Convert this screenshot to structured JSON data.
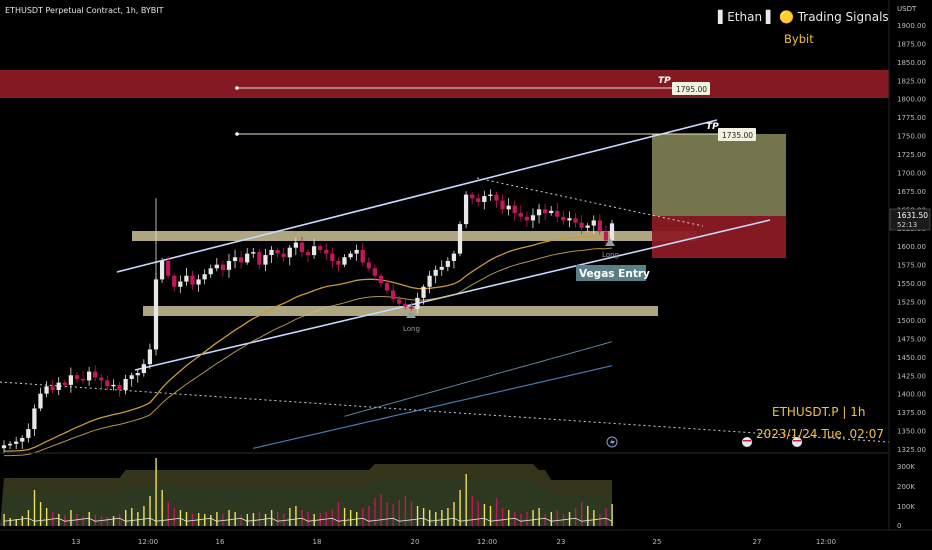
{
  "header": {
    "symbol_title": "ETHUSDT Perpetual Contract, 1h, BYBIT",
    "brand_line": "▌Ethan ▌ 🟡 Trading Signals",
    "exchange": "Bybit",
    "currency": "USDT"
  },
  "watermark": {
    "ticker": "ETHUSDT.P | 1h",
    "datetime": "2023/1/24 Tue. 02:07"
  },
  "price_axis": {
    "ticks": [
      "1900.00",
      "1875.00",
      "1850.00",
      "1825.00",
      "1800.00",
      "1775.00",
      "1750.00",
      "1725.00",
      "1700.00",
      "1675.00",
      "1650.00",
      "1625.00",
      "1600.00",
      "1575.00",
      "1550.00",
      "1525.00",
      "1500.00",
      "1475.00",
      "1450.00",
      "1425.00",
      "1400.00",
      "1375.00",
      "1350.00",
      "1325.00"
    ],
    "current_price": "1631.50",
    "countdown": "52:13"
  },
  "volume_axis": {
    "ticks": [
      "300K",
      "200K",
      "100K",
      "0"
    ]
  },
  "time_axis": {
    "ticks": [
      "13",
      "12:00",
      "16",
      "18",
      "20",
      "12:00",
      "23",
      "25",
      "27",
      "12:00"
    ]
  },
  "annotations": {
    "tp1_tag": "TP",
    "tp1_price": "1795.00",
    "tp2_tag": "TP",
    "tp2_price": "1735.00",
    "entry_label": "Vegas Entry",
    "long_label_1": "Long",
    "long_label_2": "Long"
  },
  "colors": {
    "background": "#000000",
    "candle_up": "#e8e8e8",
    "candle_down": "#c2185b",
    "resistance_zone": "#8b1a24",
    "support_zone": "#d8d0a0",
    "target_box": "#8a8a5a",
    "stop_box": "#8b1a24",
    "channel_line": "#c8d8ff",
    "ema_gold": "#c89a3a",
    "ema_blue": "#4a7ab0",
    "accent_text": "#f0c040"
  },
  "chart_data": {
    "type": "candlestick",
    "symbol": "ETHUSDT",
    "timeframe": "1h",
    "ylim": [
      1325,
      1910
    ],
    "close_series": [
      1330,
      1332,
      1335,
      1340,
      1352,
      1380,
      1400,
      1410,
      1405,
      1415,
      1412,
      1425,
      1420,
      1418,
      1430,
      1422,
      1418,
      1410,
      1412,
      1405,
      1420,
      1425,
      1428,
      1440,
      1460,
      1555,
      1580,
      1560,
      1545,
      1552,
      1560,
      1548,
      1555,
      1562,
      1570,
      1575,
      1568,
      1580,
      1585,
      1578,
      1590,
      1592,
      1575,
      1588,
      1595,
      1590,
      1585,
      1598,
      1605,
      1592,
      1588,
      1600,
      1595,
      1590,
      1580,
      1575,
      1585,
      1590,
      1595,
      1578,
      1570,
      1560,
      1550,
      1540,
      1528,
      1522,
      1518,
      1515,
      1530,
      1545,
      1560,
      1568,
      1572,
      1580,
      1590,
      1630,
      1670,
      1665,
      1660,
      1668,
      1670,
      1662,
      1650,
      1655,
      1645,
      1640,
      1635,
      1642,
      1650,
      1645,
      1648,
      1640,
      1635,
      1638,
      1632,
      1625,
      1628,
      1635,
      1620,
      1608,
      1631
    ],
    "volume_series": [
      60,
      40,
      35,
      50,
      80,
      180,
      120,
      90,
      70,
      60,
      55,
      80,
      60,
      50,
      70,
      55,
      50,
      45,
      50,
      60,
      80,
      90,
      70,
      100,
      150,
      340,
      180,
      120,
      90,
      80,
      70,
      60,
      65,
      60,
      55,
      70,
      60,
      80,
      70,
      55,
      60,
      65,
      70,
      60,
      80,
      70,
      60,
      90,
      100,
      80,
      70,
      60,
      65,
      70,
      80,
      120,
      90,
      80,
      70,
      90,
      100,
      140,
      160,
      120,
      110,
      130,
      150,
      120,
      100,
      90,
      80,
      70,
      80,
      90,
      120,
      180,
      260,
      150,
      120,
      110,
      100,
      140,
      90,
      80,
      70,
      60,
      70,
      80,
      90,
      60,
      70,
      80,
      60,
      70,
      90,
      120,
      100,
      80,
      60,
      90,
      110
    ],
    "resistance_zone": [
      1797,
      1833
    ],
    "support_zone_upper": [
      1597,
      1608
    ],
    "support_zone_lower": [
      1500,
      1512
    ],
    "target_box": [
      1635,
      1735
    ],
    "stop_box": [
      1580,
      1635
    ],
    "take_profit_levels": [
      1795,
      1735
    ],
    "current_price": 1631.5
  }
}
